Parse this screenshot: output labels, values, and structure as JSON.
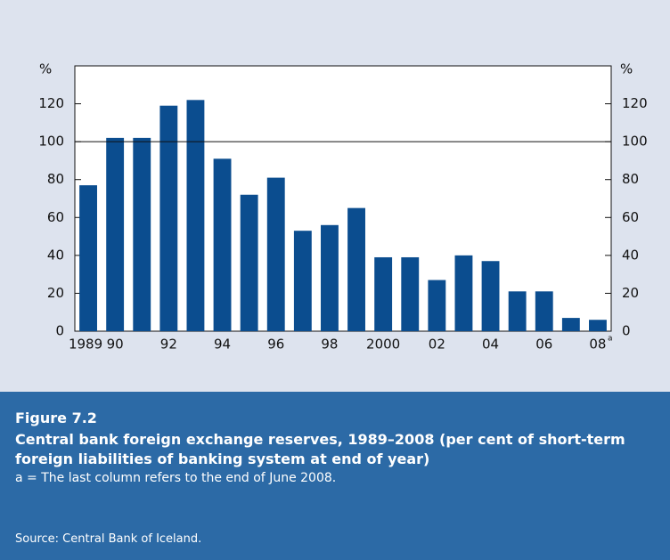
{
  "chart_data": {
    "type": "bar",
    "y_unit": "%",
    "categories": [
      "1989",
      "90",
      null,
      "92",
      null,
      "94",
      null,
      "96",
      null,
      "98",
      null,
      "2000",
      null,
      "02",
      null,
      "04",
      null,
      "06",
      null,
      "08"
    ],
    "category_note": "a",
    "values": [
      77,
      102,
      102,
      119,
      122,
      91,
      72,
      81,
      53,
      56,
      65,
      39,
      39,
      27,
      40,
      37,
      21,
      21,
      7,
      6
    ],
    "color": "#0b4d8f",
    "ylim": [
      0,
      140
    ],
    "yticks": [
      0,
      20,
      40,
      60,
      80,
      100,
      120
    ],
    "reference_line": 100,
    "figure_label": "Figure 7.2",
    "title": "Central bank foreign exchange reserves, 1989–2008 (per cent of short-term foreign liabilities of banking system at end of year)",
    "note": "a = The last column refers to the end of June 2008.",
    "source": "Source: Central Bank of Iceland."
  }
}
